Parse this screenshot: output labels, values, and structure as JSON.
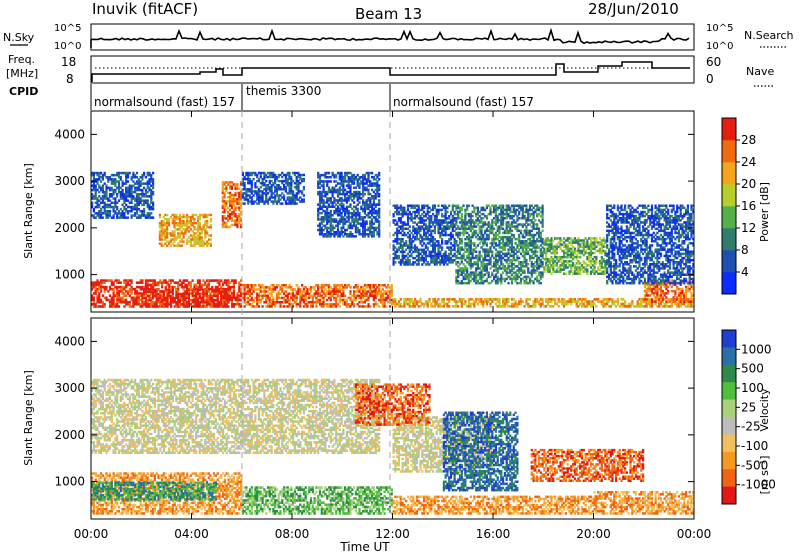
{
  "header": {
    "station": "Inuvik (fitACF)",
    "beam": "Beam 13",
    "date": "28/Jun/2010"
  },
  "top_panels": {
    "nsky_label": "N.Sky",
    "nsky_ticks": [
      "10^5",
      "10^0"
    ],
    "nsearch_label": "N.Search",
    "nsearch_ticks": [
      "10^5",
      "10^0"
    ],
    "freq_label": "Freq.",
    "freq_unit": "[MHz]",
    "freq_ticks": [
      "18",
      "8"
    ],
    "nave_label": "Nave",
    "nave_ticks": [
      "60",
      "0"
    ],
    "cpid_label": "CPID",
    "cpid_segments": [
      {
        "label": "normalsound (fast) 157",
        "start": 0,
        "end": 6
      },
      {
        "label": "themis 3300",
        "start": 6,
        "end": 12
      },
      {
        "label": "normalsound (fast) 157",
        "start": 12,
        "end": 24
      }
    ]
  },
  "colorbars": {
    "power": {
      "label": "Power [dB]",
      "ticks": [
        "4",
        "8",
        "12",
        "16",
        "20",
        "24",
        "28"
      ],
      "colors": [
        "#0a2cff",
        "#1f4fb0",
        "#2f7d6a",
        "#56b04a",
        "#b8cf2a",
        "#f6a41a",
        "#f06a12",
        "#e61e12"
      ]
    },
    "velocity": {
      "label_main": "Velocity",
      "label_unit": "[m s⁻¹]",
      "ticks": [
        "1000",
        "500",
        "100",
        "25",
        "-25",
        "-100",
        "-500",
        "-1000"
      ],
      "colors": [
        "#1f3fd0",
        "#2b6fa8",
        "#2e8a4c",
        "#4fbf3a",
        "#a8d07a",
        "#bdbdbd",
        "#f0c060",
        "#f59a20",
        "#f06414",
        "#e01818"
      ]
    }
  },
  "chart_data": [
    {
      "type": "heatmap",
      "name": "power",
      "ylabel": "Slant Range [km]",
      "yticks": [
        "1000",
        "2000",
        "3000",
        "4000"
      ],
      "ylim": [
        200,
        4500
      ],
      "xlim": [
        0,
        24
      ],
      "regions": [
        {
          "t0": 0.0,
          "t1": 6.0,
          "r0": 300,
          "r1": 900,
          "level": 7
        },
        {
          "t0": 2.0,
          "t1": 5.5,
          "r0": 300,
          "r1": 700,
          "level": 7
        },
        {
          "t0": 6.0,
          "t1": 12.0,
          "r0": 300,
          "r1": 800,
          "level": 6
        },
        {
          "t0": 12.0,
          "t1": 24.0,
          "r0": 300,
          "r1": 500,
          "level": 5
        },
        {
          "t0": 22.0,
          "t1": 24.0,
          "r0": 400,
          "r1": 900,
          "level": 6
        },
        {
          "t0": 2.7,
          "t1": 4.8,
          "r0": 1600,
          "r1": 2300,
          "level": 5
        },
        {
          "t0": 5.2,
          "t1": 6.0,
          "r0": 2000,
          "r1": 3000,
          "level": 6
        },
        {
          "t0": 0.0,
          "t1": 2.5,
          "r0": 2200,
          "r1": 3200,
          "level": 1
        },
        {
          "t0": 6.0,
          "t1": 8.5,
          "r0": 2500,
          "r1": 3200,
          "level": 1
        },
        {
          "t0": 9.0,
          "t1": 11.5,
          "r0": 1800,
          "r1": 3200,
          "level": 1
        },
        {
          "t0": 12.0,
          "t1": 14.5,
          "r0": 1200,
          "r1": 2500,
          "level": 1
        },
        {
          "t0": 14.5,
          "t1": 18.0,
          "r0": 800,
          "r1": 2500,
          "level": 2
        },
        {
          "t0": 18.0,
          "t1": 20.5,
          "r0": 1000,
          "r1": 1800,
          "level": 3
        },
        {
          "t0": 20.5,
          "t1": 24.0,
          "r0": 800,
          "r1": 2500,
          "level": 1
        }
      ]
    },
    {
      "type": "heatmap",
      "name": "velocity",
      "ylabel": "Slant Range [km]",
      "yticks": [
        "1000",
        "2000",
        "3000",
        "4000"
      ],
      "ylim": [
        200,
        4500
      ],
      "xlim": [
        0,
        24
      ],
      "xticks": [
        "00:00",
        "04:00",
        "08:00",
        "12:00",
        "16:00",
        "20:00",
        "00:00"
      ],
      "xlabel": "Time UT",
      "regions": [
        {
          "t0": 0.0,
          "t1": 6.0,
          "r0": 300,
          "r1": 1200,
          "level": 7
        },
        {
          "t0": 0.0,
          "t1": 5.0,
          "r0": 600,
          "r1": 1000,
          "level": 2
        },
        {
          "t0": 6.0,
          "t1": 12.0,
          "r0": 300,
          "r1": 900,
          "level": 3
        },
        {
          "t0": 12.0,
          "t1": 20.0,
          "r0": 300,
          "r1": 700,
          "level": 7
        },
        {
          "t0": 20.0,
          "t1": 24.0,
          "r0": 300,
          "r1": 800,
          "level": 7
        },
        {
          "t0": 0.0,
          "t1": 6.0,
          "r0": 1600,
          "r1": 3200,
          "level": 5
        },
        {
          "t0": 6.0,
          "t1": 11.5,
          "r0": 1600,
          "r1": 3200,
          "level": 5
        },
        {
          "t0": 12.0,
          "t1": 16.0,
          "r0": 1200,
          "r1": 2400,
          "level": 5
        },
        {
          "t0": 14.0,
          "t1": 17.0,
          "r0": 800,
          "r1": 2500,
          "level": 1
        },
        {
          "t0": 17.5,
          "t1": 22.0,
          "r0": 1000,
          "r1": 1700,
          "level": 8
        },
        {
          "t0": 10.5,
          "t1": 13.5,
          "r0": 2200,
          "r1": 3100,
          "level": 8
        }
      ]
    }
  ]
}
